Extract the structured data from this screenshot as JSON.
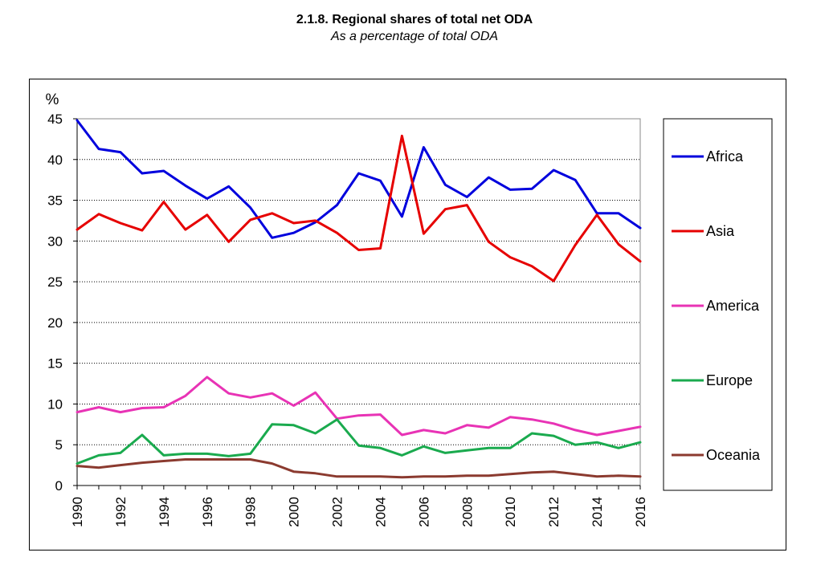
{
  "header": {
    "title": "2.1.8. Regional shares of total net ODA",
    "subtitle": "As a percentage of total ODA"
  },
  "chart_data": {
    "type": "line",
    "title": "2.1.8. Regional shares of total net ODA",
    "subtitle": "As a percentage of total ODA",
    "ylabel": "%",
    "xlabel": "",
    "ylim": [
      0,
      45
    ],
    "yticks": [
      0,
      5,
      10,
      15,
      20,
      25,
      30,
      35,
      40,
      45
    ],
    "x": [
      1990,
      1991,
      1992,
      1993,
      1994,
      1995,
      1996,
      1997,
      1998,
      1999,
      2000,
      2001,
      2002,
      2003,
      2004,
      2005,
      2006,
      2007,
      2008,
      2009,
      2010,
      2011,
      2012,
      2013,
      2014,
      2015,
      2016
    ],
    "xtick_labels": [
      "1990",
      "1992",
      "1994",
      "1996",
      "1998",
      "2000",
      "2002",
      "2004",
      "2006",
      "2008",
      "2010",
      "2012",
      "2014",
      "2016"
    ],
    "grid": true,
    "legend_position": "right",
    "series": [
      {
        "name": "Africa",
        "color": "#0000dd",
        "values": [
          44.8,
          41.3,
          40.9,
          38.3,
          38.6,
          36.8,
          35.2,
          36.7,
          34.1,
          30.4,
          31.0,
          32.3,
          34.4,
          38.3,
          37.4,
          33.0,
          41.5,
          36.9,
          35.4,
          37.8,
          36.3,
          36.4,
          38.7,
          37.5,
          33.4,
          33.4,
          31.6
        ]
      },
      {
        "name": "Asia",
        "color": "#e60000",
        "values": [
          31.4,
          33.3,
          32.2,
          31.3,
          34.8,
          31.4,
          33.2,
          29.9,
          32.6,
          33.4,
          32.2,
          32.5,
          31.0,
          28.9,
          29.1,
          42.9,
          30.9,
          33.9,
          34.4,
          29.9,
          28.0,
          26.9,
          25.1,
          29.5,
          33.2,
          29.6,
          27.5
        ]
      },
      {
        "name": "America",
        "color": "#e833b5",
        "values": [
          9.0,
          9.6,
          9.0,
          9.5,
          9.6,
          11.0,
          13.3,
          11.3,
          10.8,
          11.3,
          9.8,
          11.4,
          8.2,
          8.6,
          8.7,
          6.2,
          6.8,
          6.4,
          7.4,
          7.1,
          8.4,
          8.1,
          7.6,
          6.8,
          6.2,
          6.7,
          7.2
        ]
      },
      {
        "name": "Europe",
        "color": "#1aaa4e",
        "values": [
          2.7,
          3.7,
          4.0,
          6.2,
          3.7,
          3.9,
          3.9,
          3.6,
          3.9,
          7.5,
          7.4,
          6.4,
          8.1,
          4.9,
          4.6,
          3.7,
          4.8,
          4.0,
          4.3,
          4.6,
          4.6,
          6.4,
          6.1,
          5.0,
          5.3,
          4.6,
          5.3
        ]
      },
      {
        "name": "Oceania",
        "color": "#8b3a2f",
        "values": [
          2.4,
          2.2,
          2.5,
          2.8,
          3.0,
          3.2,
          3.2,
          3.2,
          3.2,
          2.7,
          1.7,
          1.5,
          1.1,
          1.1,
          1.1,
          1.0,
          1.1,
          1.1,
          1.2,
          1.2,
          1.4,
          1.6,
          1.7,
          1.4,
          1.1,
          1.2,
          1.1
        ]
      }
    ]
  }
}
